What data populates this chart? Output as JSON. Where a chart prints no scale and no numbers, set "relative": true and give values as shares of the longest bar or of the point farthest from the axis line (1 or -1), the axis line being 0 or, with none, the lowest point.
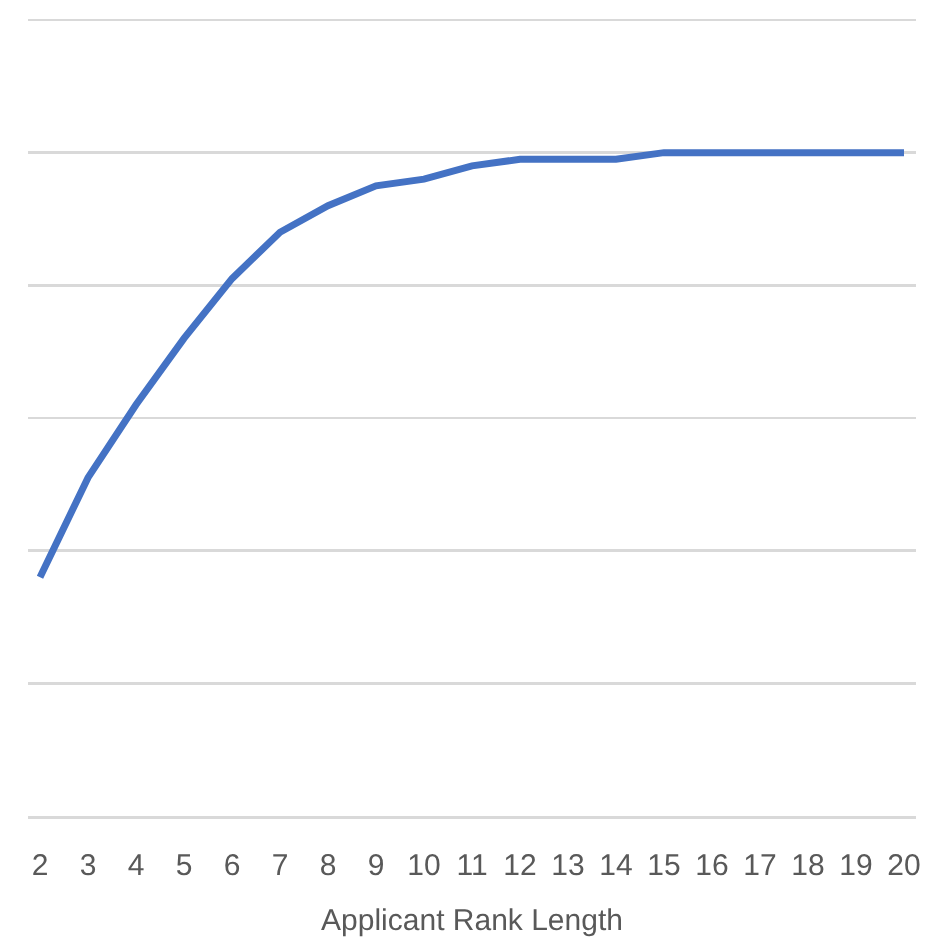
{
  "chart_data": {
    "type": "line",
    "xlabel": "Applicant Rank Length",
    "categories": [
      "2",
      "3",
      "4",
      "5",
      "6",
      "7",
      "8",
      "9",
      "10",
      "11",
      "12",
      "13",
      "14",
      "15",
      "16",
      "17",
      "18",
      "19",
      "20"
    ],
    "series": [
      {
        "color": "#4472c4",
        "values": [
          0.36,
          0.51,
          0.62,
          0.72,
          0.81,
          0.88,
          0.92,
          0.95,
          0.96,
          0.98,
          0.99,
          0.99,
          0.99,
          1,
          1,
          1,
          1,
          1,
          1
        ]
      }
    ],
    "relative": true,
    "grid": "y",
    "marker": "none"
  }
}
